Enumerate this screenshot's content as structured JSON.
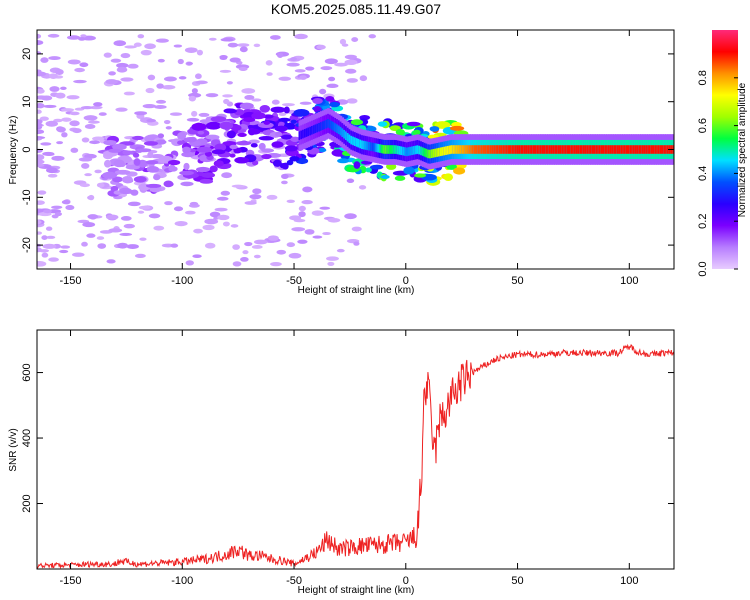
{
  "title": "KOM5.2025.085.11.49.G07",
  "chart_data": [
    {
      "type": "heatmap",
      "xlabel": "Height of straight line (km)",
      "ylabel": "Frequency (Hz)",
      "xlim": [
        -165,
        120
      ],
      "ylim": [
        -25,
        25
      ],
      "xticks": [
        -150,
        -100,
        -50,
        0,
        50,
        100
      ],
      "yticks": [
        -20,
        -10,
        0,
        10,
        20
      ],
      "colorbar": {
        "label": "Normalized spectral amplitude",
        "range": [
          0,
          1
        ],
        "ticks": [
          "0.0",
          "0.2",
          "0.4",
          "0.6",
          "0.8"
        ],
        "colors": [
          "#e8ccff",
          "#b77dff",
          "#7b00ff",
          "#2a00ff",
          "#0050ff",
          "#00e0ff",
          "#00ff40",
          "#a0ff00",
          "#ffff00",
          "#ff9000",
          "#ff0000",
          "#ff2a7a"
        ]
      },
      "ridge": {
        "x": [
          -165,
          -150,
          -130,
          -110,
          -90,
          -75,
          -60,
          -50,
          -40,
          -35,
          -30,
          -25,
          -20,
          -15,
          -10,
          -5,
          0,
          5,
          10,
          15,
          20,
          30,
          50,
          80,
          100,
          120
        ],
        "freq": [
          -1.5,
          -1,
          -4,
          -3,
          -1,
          3.5,
          2.5,
          2.5,
          4.5,
          5.5,
          4,
          2,
          1,
          0.5,
          0,
          0,
          -0.5,
          0,
          -1,
          -0.5,
          0,
          0,
          0,
          0,
          0,
          0
        ],
        "amplitude": [
          0.05,
          0.08,
          0.12,
          0.12,
          0.15,
          0.18,
          0.2,
          0.25,
          0.3,
          0.35,
          0.4,
          0.45,
          0.45,
          0.35,
          0.6,
          0.5,
          0.4,
          0.45,
          0.6,
          0.7,
          0.75,
          0.85,
          0.9,
          0.9,
          0.9,
          0.9
        ]
      }
    },
    {
      "type": "line",
      "xlabel": "Height of straight line (km)",
      "ylabel": "SNR (v/v)",
      "xlim": [
        -165,
        120
      ],
      "ylim": [
        0,
        730
      ],
      "xticks": [
        -150,
        -100,
        -50,
        0,
        50,
        100
      ],
      "yticks": [
        200,
        400,
        600
      ],
      "color": "#ee2222",
      "x": [
        -165,
        -150,
        -140,
        -130,
        -128,
        -120,
        -110,
        -100,
        -90,
        -80,
        -75,
        -70,
        -65,
        -60,
        -55,
        -50,
        -40,
        -35,
        -30,
        -25,
        -20,
        -10,
        0,
        5,
        7,
        8,
        10,
        12,
        13,
        15,
        18,
        20,
        22,
        25,
        30,
        40,
        50,
        60,
        70,
        80,
        90,
        95,
        100,
        105,
        110,
        115,
        120
      ],
      "y": [
        10,
        12,
        15,
        15,
        25,
        15,
        18,
        22,
        30,
        45,
        60,
        40,
        40,
        30,
        25,
        15,
        50,
        90,
        60,
        65,
        70,
        75,
        80,
        100,
        260,
        520,
        560,
        400,
        350,
        450,
        480,
        520,
        540,
        570,
        600,
        640,
        655,
        655,
        660,
        660,
        660,
        660,
        680,
        660,
        655,
        660,
        660
      ]
    }
  ]
}
